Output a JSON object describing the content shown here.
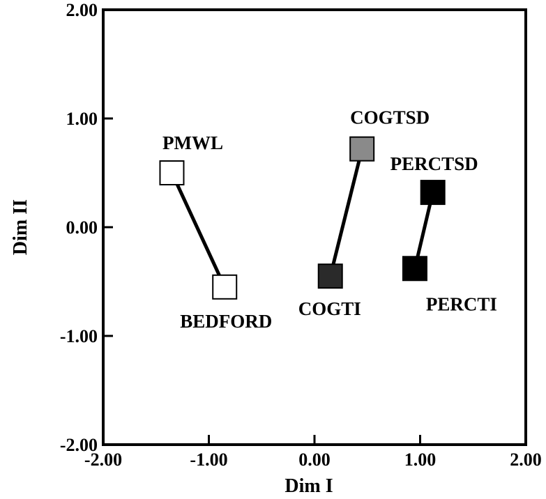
{
  "chart_data": {
    "type": "scatter",
    "title": "",
    "xlabel": "Dim I",
    "ylabel": "Dim II",
    "xlim": [
      -2.0,
      2.0
    ],
    "ylim": [
      -2.0,
      2.0
    ],
    "xticks": [
      "-2.00",
      "-1.00",
      "0.00",
      "1.00",
      "2.00"
    ],
    "yticks": [
      "-2.00",
      "-1.00",
      "0.00",
      "1.00",
      "2.00"
    ],
    "xtick_values": [
      -2,
      -1,
      0,
      1,
      2
    ],
    "ytick_values": [
      -2,
      -1,
      0,
      1,
      2
    ],
    "grid": false,
    "legend": "none",
    "points": [
      {
        "label": "PMWL",
        "x": -1.35,
        "y": 0.5,
        "fill": "#ffffff"
      },
      {
        "label": "BEDFORD",
        "x": -0.85,
        "y": -0.55,
        "fill": "#ffffff"
      },
      {
        "label": "COGTSD",
        "x": 0.45,
        "y": 0.72,
        "fill": "#8a8a8a"
      },
      {
        "label": "COGTI",
        "x": 0.15,
        "y": -0.45,
        "fill": "#2a2a2a"
      },
      {
        "label": "PERCTSD",
        "x": 1.12,
        "y": 0.32,
        "fill": "#000000"
      },
      {
        "label": "PERCTI",
        "x": 0.95,
        "y": -0.38,
        "fill": "#000000"
      }
    ],
    "connections": [
      [
        "PMWL",
        "BEDFORD"
      ],
      [
        "COGTSD",
        "COGTI"
      ],
      [
        "PERCTSD",
        "PERCTI"
      ]
    ]
  }
}
